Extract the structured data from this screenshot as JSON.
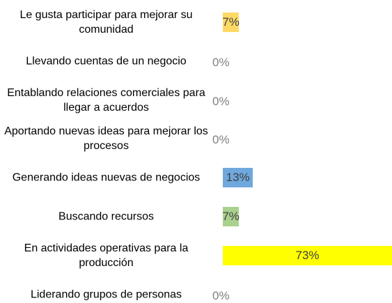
{
  "chart_data": {
    "type": "bar",
    "orientation": "horizontal",
    "categories": [
      "Le gusta participar para mejorar su comunidad",
      "Llevando cuentas de un negocio",
      "Entablando relaciones comerciales para llegar a acuerdos",
      "Aportando nuevas ideas para mejorar los procesos",
      "Generando ideas  nuevas de negocios",
      "Buscando recursos",
      "En actividades operativas para la producción",
      "Liderando grupos de personas"
    ],
    "values": [
      7,
      0,
      0,
      0,
      13,
      7,
      73,
      0
    ],
    "value_labels": [
      "7%",
      "0%",
      "0%",
      "0%",
      "13%",
      "7%",
      "73%",
      "0%"
    ],
    "colors": [
      "#ffd966",
      "#ffd966",
      "#ffd966",
      "#ffd966",
      "#6fa8dc",
      "#a9d18e",
      "#ffff00",
      "#ffd966"
    ],
    "xlim": [
      0,
      73
    ]
  }
}
